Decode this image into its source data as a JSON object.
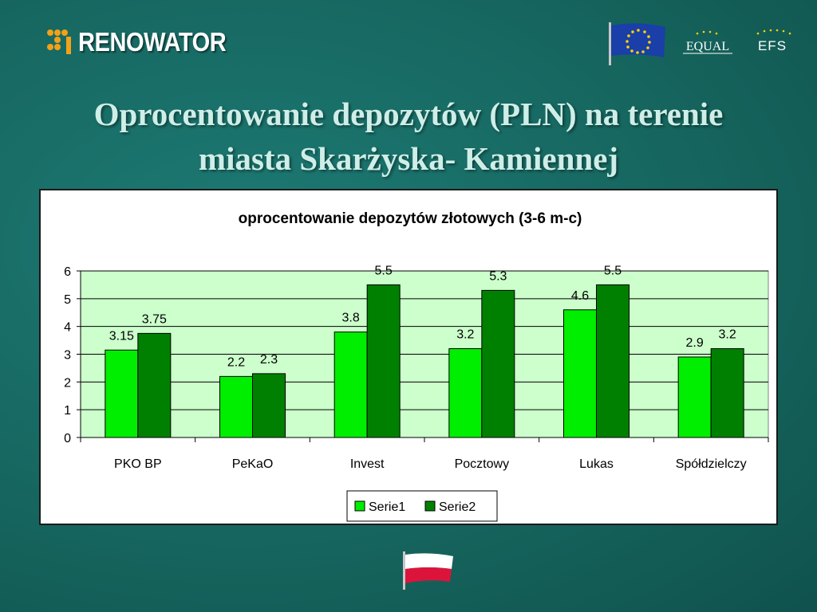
{
  "header": {
    "logo_text": "RENOWATOR",
    "equal_text": "EQUAL",
    "efs_text": "EFS"
  },
  "slide": {
    "title_line1": "Oprocentowanie depozytów (PLN) na terenie",
    "title_line2": "miasta Skarżyska- Kamiennej"
  },
  "icons": {
    "logo": "renowator-logo-icon",
    "eu": "eu-flag-icon",
    "equal": "equal-logo-icon",
    "efs": "efs-logo-icon",
    "poland": "poland-flag-icon"
  },
  "colors": {
    "background": "#16665f",
    "title": "#cfeee8",
    "plot_area": "#ccffcc",
    "serie1": "#00ee00",
    "serie2": "#008000"
  },
  "chart_data": {
    "type": "bar",
    "title": "oprocentowanie depozytów złotowych (3-6 m-c)",
    "xlabel": "",
    "ylabel": "",
    "categories": [
      "PKO BP",
      "PeKaO",
      "Invest",
      "Pocztowy",
      "Lukas",
      "Spółdzielczy"
    ],
    "series": [
      {
        "name": "Serie1",
        "values": [
          3.15,
          2.2,
          3.8,
          3.2,
          4.6,
          2.9
        ],
        "labels": [
          "3.15",
          "2.2",
          "3.8",
          "3.2",
          "4.6",
          "2.9"
        ]
      },
      {
        "name": "Serie2",
        "values": [
          3.75,
          2.3,
          5.5,
          5.3,
          5.5,
          3.2
        ],
        "labels": [
          "3.75",
          "2.3",
          "5.5",
          "5.3",
          "5.5",
          "3.2"
        ]
      }
    ],
    "ylim": [
      0,
      6
    ],
    "yticks": [
      "0",
      "1",
      "2",
      "3",
      "4",
      "5",
      "6"
    ],
    "grid": true,
    "legend": "bottom"
  }
}
